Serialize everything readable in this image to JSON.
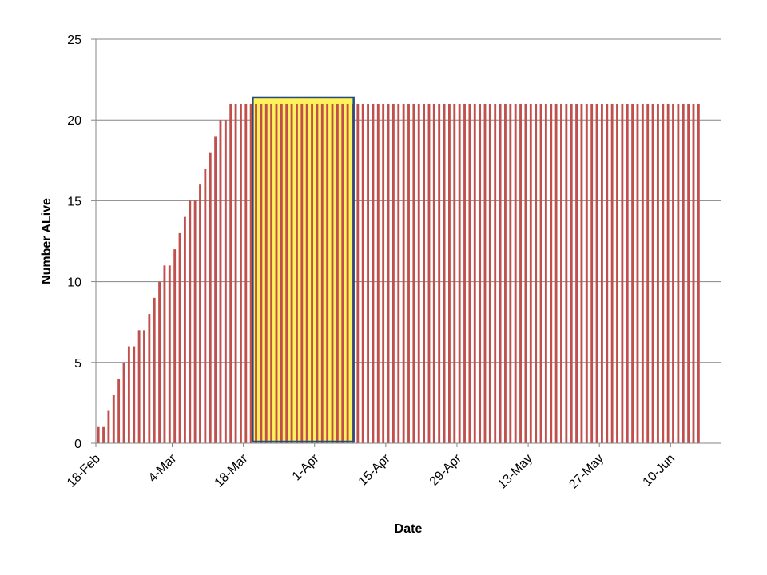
{
  "chart_data": {
    "type": "bar",
    "title": "",
    "xlabel": "Date",
    "ylabel": "Number ALive",
    "ylim": [
      0,
      25
    ],
    "yticks": [
      0,
      5,
      10,
      15,
      20,
      25
    ],
    "grid": true,
    "x_start": "18-Feb",
    "x_end": "19-Jun",
    "xtick_labels": [
      "18-Feb",
      "4-Mar",
      "18-Mar",
      "1-Apr",
      "15-Apr",
      "29-Apr",
      "13-May",
      "27-May",
      "10-Jun"
    ],
    "values": [
      1,
      1,
      2,
      3,
      4,
      5,
      6,
      6,
      7,
      7,
      8,
      9,
      10,
      11,
      11,
      12,
      13,
      14,
      15,
      15,
      16,
      17,
      18,
      19,
      20,
      20,
      21,
      21,
      21,
      21,
      21,
      21,
      21,
      21,
      21,
      21,
      21,
      21,
      21,
      21,
      21,
      21,
      21,
      21,
      21,
      21,
      21,
      21,
      21,
      21,
      21,
      21,
      21,
      21,
      21,
      21,
      21,
      21,
      21,
      21,
      21,
      21,
      21,
      21,
      21,
      21,
      21,
      21,
      21,
      21,
      21,
      21,
      21,
      21,
      21,
      21,
      21,
      21,
      21,
      21,
      21,
      21,
      21,
      21,
      21,
      21,
      21,
      21,
      21,
      21,
      21,
      21,
      21,
      21,
      21,
      21,
      21,
      21,
      21,
      21,
      21,
      21,
      21,
      21,
      21,
      21,
      21,
      21,
      21,
      21,
      21,
      21,
      21,
      21,
      21,
      21,
      21,
      21,
      21
    ],
    "highlight": {
      "start": "20-Mar",
      "end": "8-Apr",
      "fill_color": "#FFF25A",
      "border_color": "#254C7E"
    },
    "colors": {
      "bar": "#C0504D",
      "grid": "#868686",
      "axis": "#868686"
    }
  }
}
